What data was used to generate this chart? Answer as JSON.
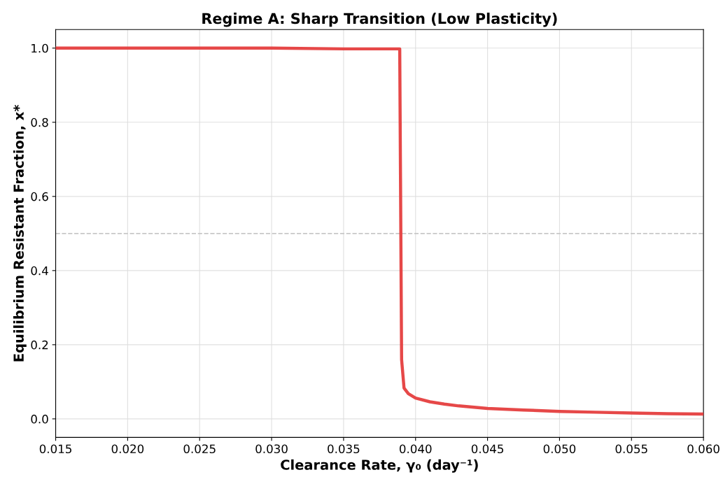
{
  "chart_data": {
    "type": "line",
    "title": "Regime A: Sharp Transition (Low Plasticity)",
    "xlabel": "Clearance Rate, γ₀ (day⁻¹)",
    "ylabel": "Equilibrium Resistant Fraction, x*",
    "series": [
      {
        "color": "#e53e3e",
        "x": [
          0.015,
          0.02,
          0.025,
          0.03,
          0.035,
          0.0389,
          0.03903,
          0.0392,
          0.0395,
          0.04,
          0.041,
          0.042,
          0.043,
          0.045,
          0.0475,
          0.05,
          0.0525,
          0.055,
          0.0575,
          0.06
        ],
        "values": [
          1.0,
          1.0,
          1.0,
          1.0,
          0.998,
          0.998,
          0.16,
          0.083,
          0.068,
          0.056,
          0.046,
          0.04,
          0.035,
          0.028,
          0.024,
          0.02,
          0.018,
          0.016,
          0.014,
          0.013
        ]
      }
    ],
    "xlim": [
      0.015,
      0.06
    ],
    "xticks": [
      {
        "value": 0.015,
        "label": "0.015"
      },
      {
        "value": 0.02,
        "label": "0.020"
      },
      {
        "value": 0.025,
        "label": "0.025"
      },
      {
        "value": 0.03,
        "label": "0.030"
      },
      {
        "value": 0.035,
        "label": "0.035"
      },
      {
        "value": 0.04,
        "label": "0.040"
      },
      {
        "value": 0.045,
        "label": "0.045"
      },
      {
        "value": 0.05,
        "label": "0.050"
      },
      {
        "value": 0.055,
        "label": "0.055"
      },
      {
        "value": 0.06,
        "label": "0.060"
      }
    ],
    "ylim": [
      -0.05,
      1.05
    ],
    "yticks": [
      {
        "value": 0,
        "label": "0.0"
      },
      {
        "value": 0.2,
        "label": "0.2"
      },
      {
        "value": 0.4,
        "label": "0.4"
      },
      {
        "value": 0.6,
        "label": "0.6"
      },
      {
        "value": 0.8,
        "label": "0.8"
      },
      {
        "value": 1.0,
        "label": "1.0"
      }
    ],
    "ref_lines": [
      {
        "axis": "y",
        "value": 0.5,
        "color": "#c8c8c8",
        "line_style": "dashed"
      }
    ],
    "grid": true,
    "marker": "none",
    "line_style": "solid"
  }
}
